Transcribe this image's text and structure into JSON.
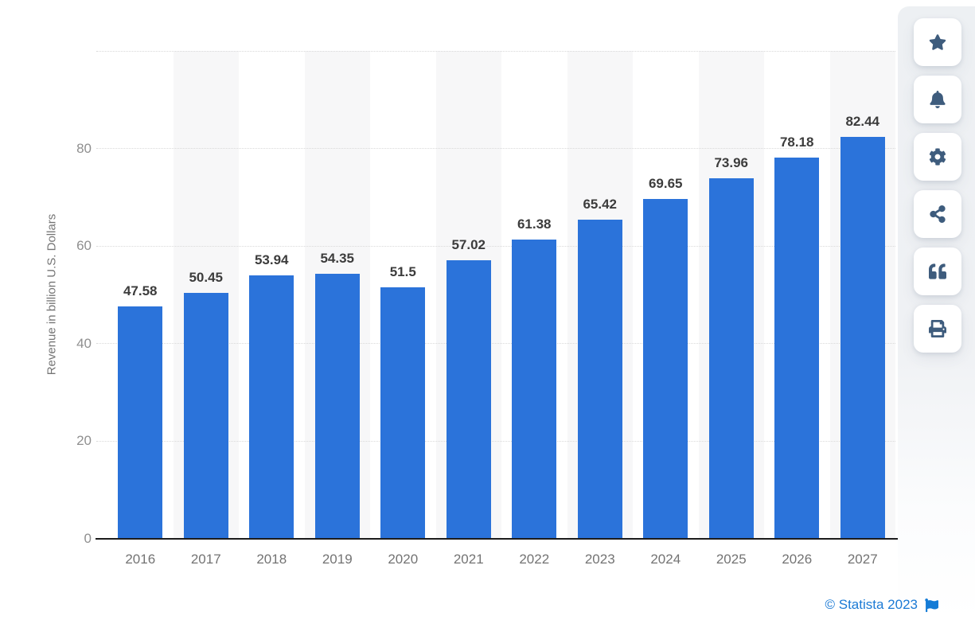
{
  "chart_data": {
    "type": "bar",
    "categories": [
      "2016",
      "2017",
      "2018",
      "2019",
      "2020",
      "2021",
      "2022",
      "2023",
      "2024",
      "2025",
      "2026",
      "2027"
    ],
    "values": [
      47.58,
      50.45,
      53.94,
      54.35,
      51.5,
      57.02,
      61.38,
      65.42,
      69.65,
      73.96,
      78.18,
      82.44
    ],
    "value_labels": [
      "47.58",
      "50.45",
      "53.94",
      "54.35",
      "51.5",
      "57.02",
      "61.38",
      "65.42",
      "69.65",
      "73.96",
      "78.18",
      "82.44"
    ],
    "title": "",
    "xlabel": "",
    "ylabel": "Revenue in billion U.S. Dollars",
    "ylim": [
      0,
      100
    ],
    "yticks": [
      0,
      20,
      40,
      60,
      80
    ],
    "grid": "horizontal-dotted",
    "legend": "none",
    "bar_color": "#2b73da",
    "stripe_color": "#f7f7f8"
  },
  "toolbar": {
    "buttons": [
      {
        "id": "favorite",
        "icon": "star-icon"
      },
      {
        "id": "notifications",
        "icon": "bell-icon"
      },
      {
        "id": "settings",
        "icon": "gear-icon"
      },
      {
        "id": "share",
        "icon": "share-icon"
      },
      {
        "id": "cite",
        "icon": "quote-icon"
      },
      {
        "id": "print",
        "icon": "print-icon"
      }
    ],
    "icon_color": "#3e5c7d"
  },
  "footer": {
    "copyright": "© Statista 2023",
    "icon": "flag-icon",
    "link_color": "#1b7ad5"
  }
}
